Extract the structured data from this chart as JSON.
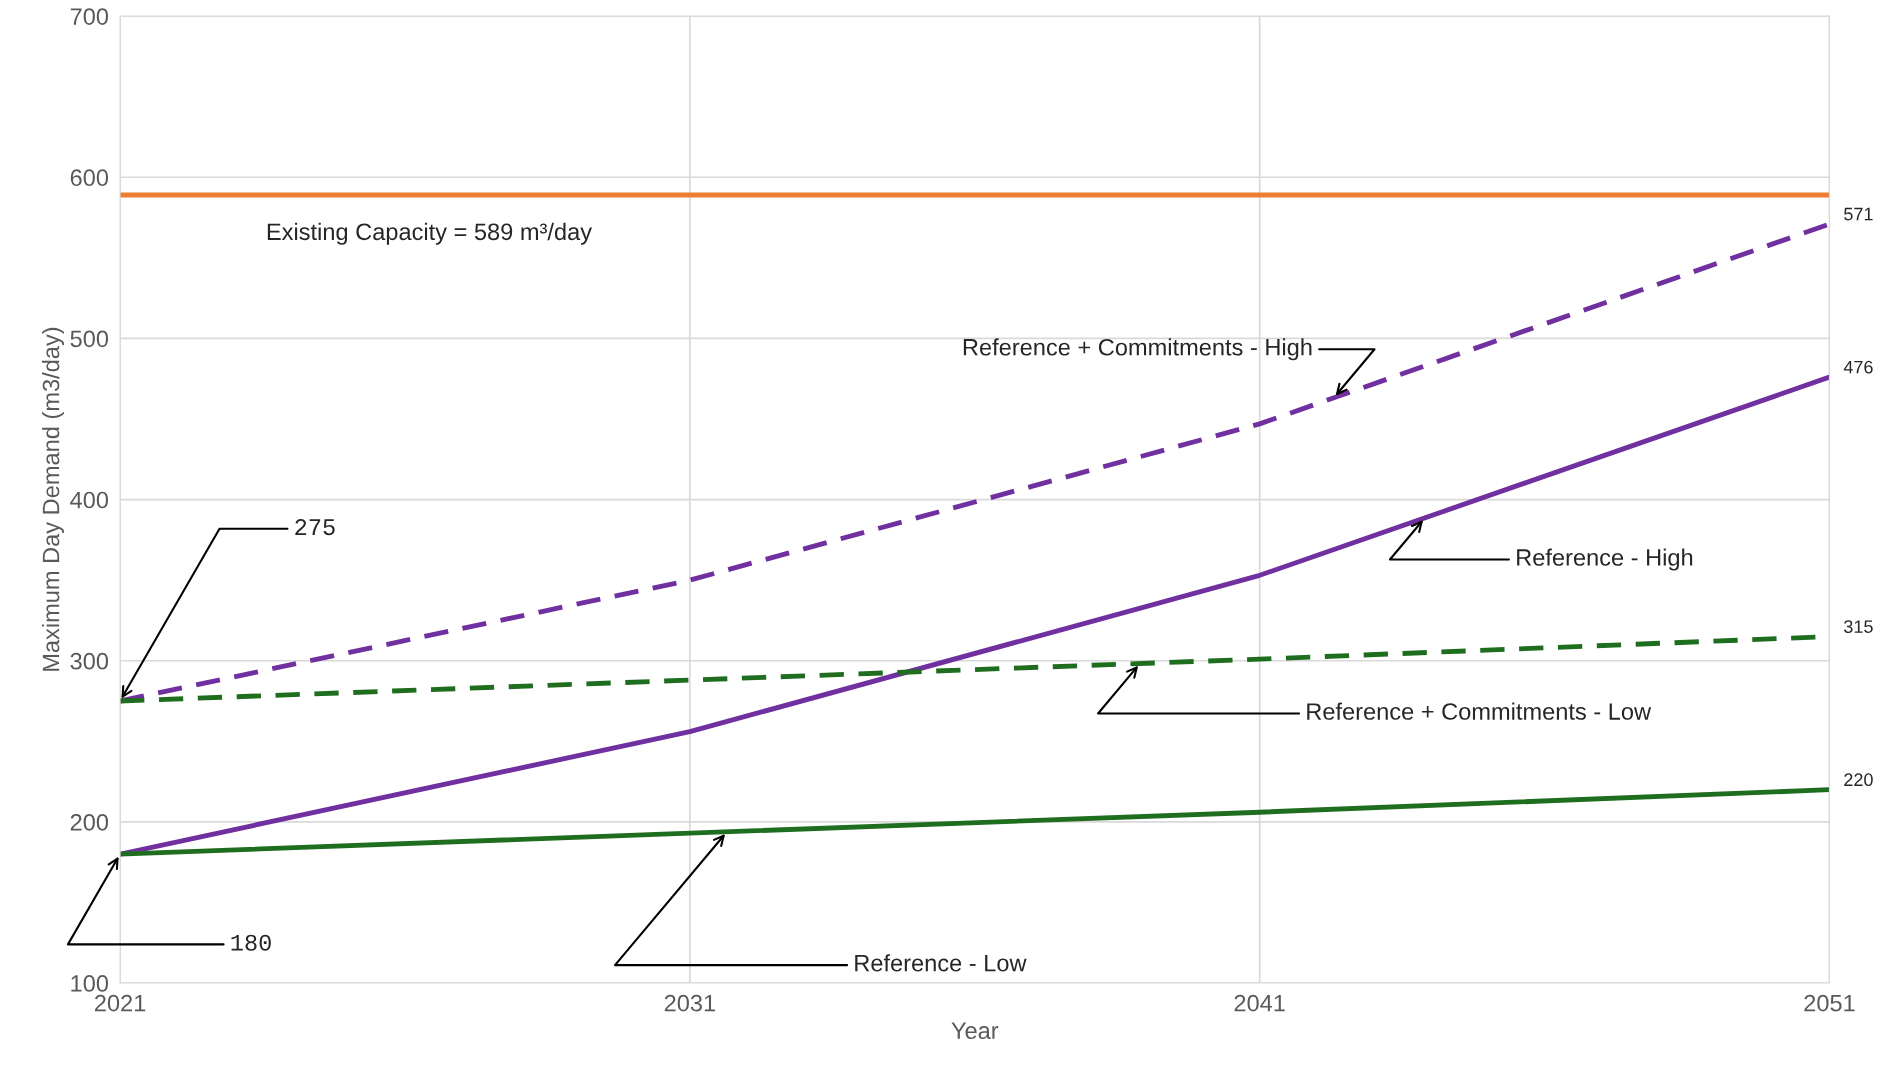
{
  "chart_data": {
    "type": "line",
    "xlabel": "Year",
    "ylabel": "Maximum Day Demand (m3/day)",
    "x": [
      2021,
      2031,
      2041,
      2051
    ],
    "xlim": [
      2021,
      2051
    ],
    "xticks": [
      2021,
      2031,
      2041,
      2051
    ],
    "ylim": [
      100,
      700
    ],
    "yticks": [
      100,
      200,
      300,
      400,
      500,
      600,
      700
    ],
    "grid": true,
    "legend": false,
    "series": [
      {
        "name": "Reference + Commitments - High",
        "color": "#7030a0",
        "line_style": "dashed",
        "values": [
          275,
          350,
          447,
          571
        ],
        "value_labels": [
          null,
          null,
          null,
          "571"
        ]
      },
      {
        "name": "Reference - High",
        "color": "#7030a0",
        "line_style": "solid",
        "values": [
          180,
          256,
          353,
          476
        ],
        "value_labels": [
          null,
          null,
          null,
          "476"
        ]
      },
      {
        "name": "Reference + Commitments - Low",
        "color": "#1f6e1f",
        "line_style": "dashed",
        "values": [
          275,
          288,
          301,
          315
        ],
        "value_labels": [
          null,
          null,
          null,
          "315"
        ]
      },
      {
        "name": "Reference - Low",
        "color": "#1f6e1f",
        "line_style": "solid",
        "values": [
          180,
          193,
          206,
          220
        ],
        "value_labels": [
          null,
          null,
          null,
          "220"
        ]
      }
    ],
    "ref_lines": [
      {
        "axis": "y",
        "value": 589,
        "label": "Existing Capacity = 589 m³/day",
        "color": "#ed7d31"
      }
    ],
    "annotations": [
      {
        "text": "275",
        "x": 2021,
        "y": 275
      },
      {
        "text": "180",
        "x": 2021,
        "y": 180
      }
    ]
  }
}
